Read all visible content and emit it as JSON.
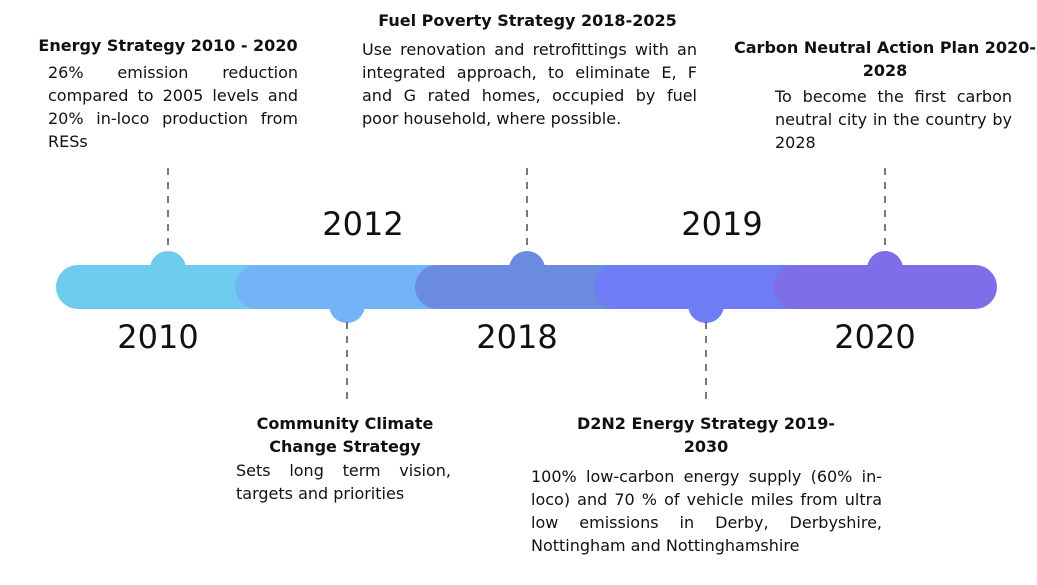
{
  "events": [
    {
      "year": "2010",
      "title": "Energy Strategy 2010 - 2020",
      "text": "26% emission reduction compared to 2005 levels and 20% in-loco production from RESs"
    },
    {
      "year": "2012",
      "title": "Community Climate Change Strategy",
      "text": "Sets long term vision, targets and priorities"
    },
    {
      "year": "2018",
      "title": "Fuel Poverty Strategy 2018-2025",
      "text": "Use renovation and retrofittings with an integrated approach, to eliminate E, F and G rated homes, occupied by fuel poor household, where possible."
    },
    {
      "year": "2019",
      "title": "D2N2 Energy Strategy 2019-2030",
      "text": "100% low-carbon energy supply (60% in-loco) and 70 % of vehicle miles from ultra low emissions in Derby, Derbyshire, Nottingham and Nottinghamshire"
    },
    {
      "year": "2020",
      "title": "Carbon Neutral Action Plan 2020-2028",
      "text": "To become the first carbon neutral city in the country by 2028"
    }
  ]
}
